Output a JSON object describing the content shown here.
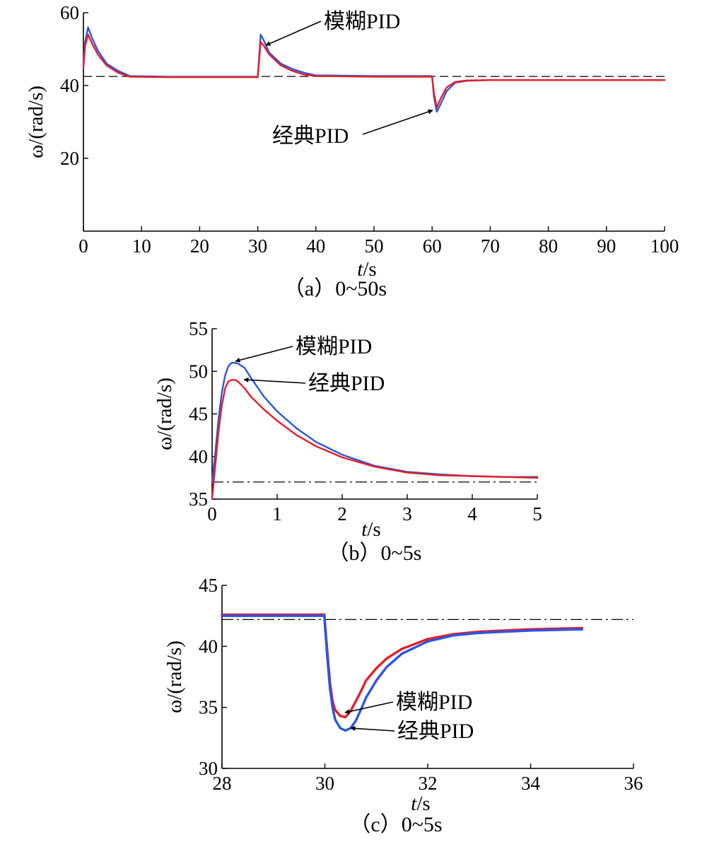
{
  "colors": {
    "fuzzy": "#2a55e6",
    "classic": "#e61e28",
    "reference": "#000000"
  },
  "chart_data": [
    {
      "type": "line",
      "caption": "（a）0~50s",
      "xlabel_italic": "t",
      "xlabel_unit": "/s",
      "ylabel": "ω/(rad/s)",
      "xlim": [
        0,
        100
      ],
      "ylim": [
        0,
        60
      ],
      "xticks": [
        0,
        10,
        20,
        30,
        40,
        50,
        60,
        70,
        80,
        90,
        100
      ],
      "yticks": [
        20,
        40,
        60
      ],
      "reference": {
        "style": "dashed",
        "value": 42.5
      },
      "annotations": [
        {
          "text": "模糊PID",
          "x": 31.5,
          "y": 51
        },
        {
          "text": "经典PID",
          "x": 60.5,
          "y": 33
        }
      ],
      "series": [
        {
          "name": "模糊PID",
          "color": "blue",
          "x": [
            0,
            0.3,
            0.8,
            1.5,
            2.5,
            4,
            6,
            8,
            15,
            29.9,
            30,
            30.5,
            31,
            32,
            34,
            36,
            38,
            40,
            50,
            59.9,
            60,
            60.3,
            60.8,
            61.5,
            62.5,
            64,
            66,
            70,
            80,
            100
          ],
          "y": [
            46,
            52,
            56,
            53,
            49.5,
            46,
            44,
            42.6,
            42.4,
            42.4,
            42.4,
            54,
            52.5,
            49,
            46,
            44.5,
            43.5,
            42.8,
            42.6,
            42.6,
            42.6,
            37,
            32.8,
            35,
            38.5,
            40.8,
            41.3,
            41.5,
            41.5,
            41.5
          ]
        },
        {
          "name": "经典PID",
          "color": "red",
          "x": [
            0,
            0.3,
            0.8,
            1.5,
            2.5,
            4,
            6,
            8,
            15,
            29.9,
            30,
            30.5,
            31,
            32,
            34,
            36,
            38,
            40,
            50,
            59.9,
            60,
            60.3,
            60.8,
            61.5,
            62.5,
            64,
            66,
            70,
            80,
            100
          ],
          "y": [
            45,
            51,
            54,
            51.5,
            48.5,
            45.5,
            43.5,
            42.4,
            42.3,
            42.3,
            42.3,
            52,
            51,
            48.5,
            45.5,
            44,
            43,
            42.6,
            42.4,
            42.4,
            42.4,
            38,
            34,
            36.5,
            39.5,
            41,
            41.4,
            41.5,
            41.5,
            41.5
          ]
        }
      ]
    },
    {
      "type": "line",
      "caption": "（b）0~5s",
      "xlabel_italic": "t",
      "xlabel_unit": "/s",
      "ylabel": "ω/(rad/s)",
      "xlim": [
        0,
        5
      ],
      "ylim": [
        35,
        55
      ],
      "xticks": [
        0,
        1,
        2,
        3,
        4,
        5
      ],
      "yticks": [
        35,
        40,
        45,
        50,
        55
      ],
      "reference": {
        "style": "dashdot",
        "value": 37
      },
      "annotations": [
        {
          "text": "模糊PID",
          "x": 0.35,
          "y": 51
        },
        {
          "text": "经典PID",
          "x": 0.45,
          "y": 49
        }
      ],
      "series": [
        {
          "name": "模糊PID",
          "color": "blue",
          "x": [
            0,
            0.05,
            0.1,
            0.15,
            0.2,
            0.25,
            0.3,
            0.35,
            0.4,
            0.5,
            0.6,
            0.8,
            1.0,
            1.3,
            1.6,
            2.0,
            2.5,
            3.0,
            3.5,
            4.0,
            4.5,
            5.0
          ],
          "y": [
            37,
            40.5,
            44.5,
            47.5,
            49.5,
            50.6,
            51,
            51,
            50.9,
            50.4,
            49.2,
            47,
            45.3,
            43.3,
            41.7,
            40.2,
            38.9,
            38.2,
            37.9,
            37.7,
            37.6,
            37.6
          ]
        },
        {
          "name": "经典PID",
          "color": "red",
          "x": [
            0,
            0.05,
            0.1,
            0.15,
            0.2,
            0.25,
            0.3,
            0.35,
            0.4,
            0.5,
            0.6,
            0.8,
            1.0,
            1.3,
            1.6,
            2.0,
            2.5,
            3.0,
            3.5,
            4.0,
            4.5,
            5.0
          ],
          "y": [
            35,
            39,
            43,
            46,
            48,
            48.8,
            49,
            49,
            48.8,
            48,
            47,
            45.5,
            44.2,
            42.5,
            41.2,
            39.9,
            38.8,
            38.1,
            37.8,
            37.7,
            37.6,
            37.5
          ]
        }
      ]
    },
    {
      "type": "line",
      "caption": "（c）0~5s",
      "xlabel_italic": "t",
      "xlabel_unit": "/s",
      "ylabel": "ω/(rad/s)",
      "xlim": [
        28,
        36
      ],
      "ylim": [
        30,
        45
      ],
      "xticks": [
        28,
        30,
        32,
        34,
        36
      ],
      "yticks": [
        30,
        35,
        40,
        45
      ],
      "reference": {
        "style": "dashdot",
        "value": 42.2
      },
      "annotations": [
        {
          "text": "模糊PID",
          "x": 30.45,
          "y": 34.3
        },
        {
          "text": "经典PID",
          "x": 30.5,
          "y": 33.2
        }
      ],
      "series": [
        {
          "name": "模糊PID",
          "color": "red",
          "x": [
            28,
            29,
            29.99,
            30.0,
            30.05,
            30.1,
            30.15,
            30.2,
            30.3,
            30.4,
            30.5,
            30.6,
            30.7,
            30.8,
            31.0,
            31.2,
            31.5,
            32.0,
            32.5,
            33.0,
            34.0,
            35.0
          ],
          "y": [
            42.6,
            42.6,
            42.6,
            42,
            39.5,
            37,
            35.5,
            34.8,
            34.3,
            34.2,
            34.7,
            35.5,
            36.3,
            37.2,
            38.2,
            39,
            39.8,
            40.6,
            41,
            41.2,
            41.4,
            41.5
          ]
        },
        {
          "name": "经典PID",
          "color": "blue",
          "x": [
            28,
            29,
            29.99,
            30.0,
            30.05,
            30.1,
            30.15,
            30.2,
            30.3,
            30.4,
            30.5,
            30.6,
            30.7,
            30.8,
            31.0,
            31.2,
            31.5,
            32.0,
            32.5,
            33.0,
            34.0,
            35.0
          ],
          "y": [
            42.5,
            42.5,
            42.5,
            41.8,
            39,
            36.5,
            35,
            34,
            33.3,
            33.1,
            33.3,
            33.9,
            34.8,
            35.8,
            37.2,
            38.3,
            39.4,
            40.4,
            40.9,
            41.1,
            41.3,
            41.4
          ]
        }
      ]
    }
  ]
}
